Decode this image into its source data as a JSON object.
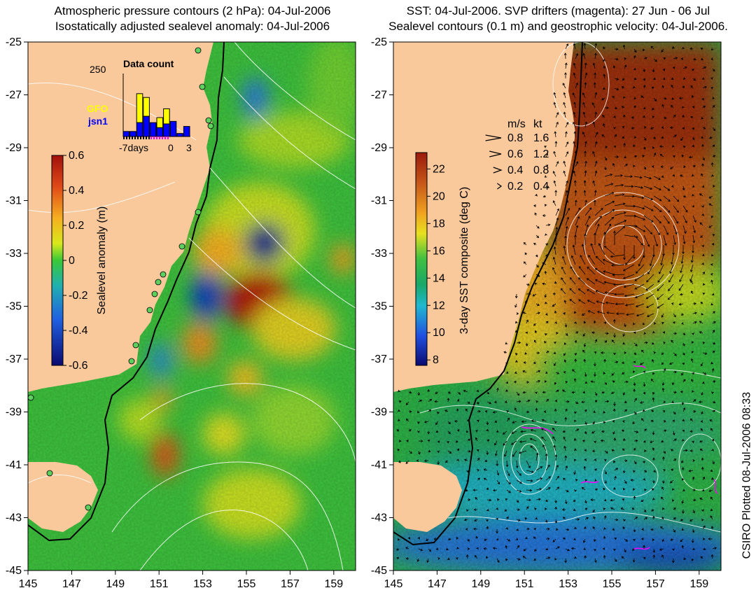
{
  "left_panel": {
    "title_line1": "Atmospheric pressure contours (2 hPa): 04-Jul-2006",
    "title_line2": "Isostatically adjusted sealevel anomaly: 04-Jul-2006",
    "colorbar": {
      "label": "Sealevel anomaly (m)",
      "ticks": [
        "0.6",
        "0.4",
        "0.2",
        "0",
        "-0.2",
        "-0.4",
        "-0.6"
      ],
      "min": -0.6,
      "max": 0.6
    },
    "inset": {
      "title": "Data count",
      "ymax_label": "250",
      "legend": [
        {
          "name": "GFO",
          "color": "#ffff00"
        },
        {
          "name": "jsn1",
          "color": "#0000ff"
        }
      ],
      "xlabel_start": "-7days",
      "xlabel_zero": "0",
      "xlabel_end": "3",
      "days": [
        -7,
        -6,
        -5,
        -4,
        -3,
        -2,
        -1,
        0,
        1,
        2
      ],
      "jsn1_counts": [
        20,
        20,
        55,
        80,
        55,
        35,
        50,
        60,
        12,
        40
      ],
      "gfo_counts": [
        0,
        0,
        115,
        75,
        0,
        40,
        60,
        0,
        0,
        0
      ],
      "ylim": [
        0,
        250
      ]
    }
  },
  "right_panel": {
    "title_line1": "SST: 04-Jul-2006. SVP drifters (magenta): 27 Jun - 06 Jul",
    "title_line2": "Sealevel contours (0.1 m) and geostrophic velocity: 04-Jul-2006.",
    "colorbar": {
      "label": "3-day SST composite (deg C)",
      "ticks": [
        "22",
        "20",
        "18",
        "16",
        "14",
        "12",
        "10",
        "8"
      ],
      "min": 7.6,
      "max": 23.2
    },
    "velocity_legend": {
      "header_ms": "m/s",
      "header_kt": "kt",
      "rows": [
        {
          "ms": "0.8",
          "kt": "1.6"
        },
        {
          "ms": "0.6",
          "kt": "1.2"
        },
        {
          "ms": "0.4",
          "kt": "0.8"
        },
        {
          "ms": "0.2",
          "kt": "0.4"
        }
      ]
    }
  },
  "axes": {
    "x_ticks": [
      "145",
      "147",
      "149",
      "151",
      "153",
      "155",
      "157",
      "159"
    ],
    "y_ticks": [
      "-25",
      "-27",
      "-29",
      "-31",
      "-33",
      "-35",
      "-37",
      "-39",
      "-41",
      "-43",
      "-45"
    ],
    "lon_range": [
      145,
      160
    ],
    "lat_range": [
      -45,
      -25
    ]
  },
  "credit": "CSIRO Plotted 08-Jul-2006 08:33",
  "colors": {
    "land": "#f9c89b",
    "sla_positive": "#b01a10",
    "sla_negative": "#0a1a8c",
    "sst_warm": "#a02a10",
    "sst_cold": "#103aa0"
  }
}
